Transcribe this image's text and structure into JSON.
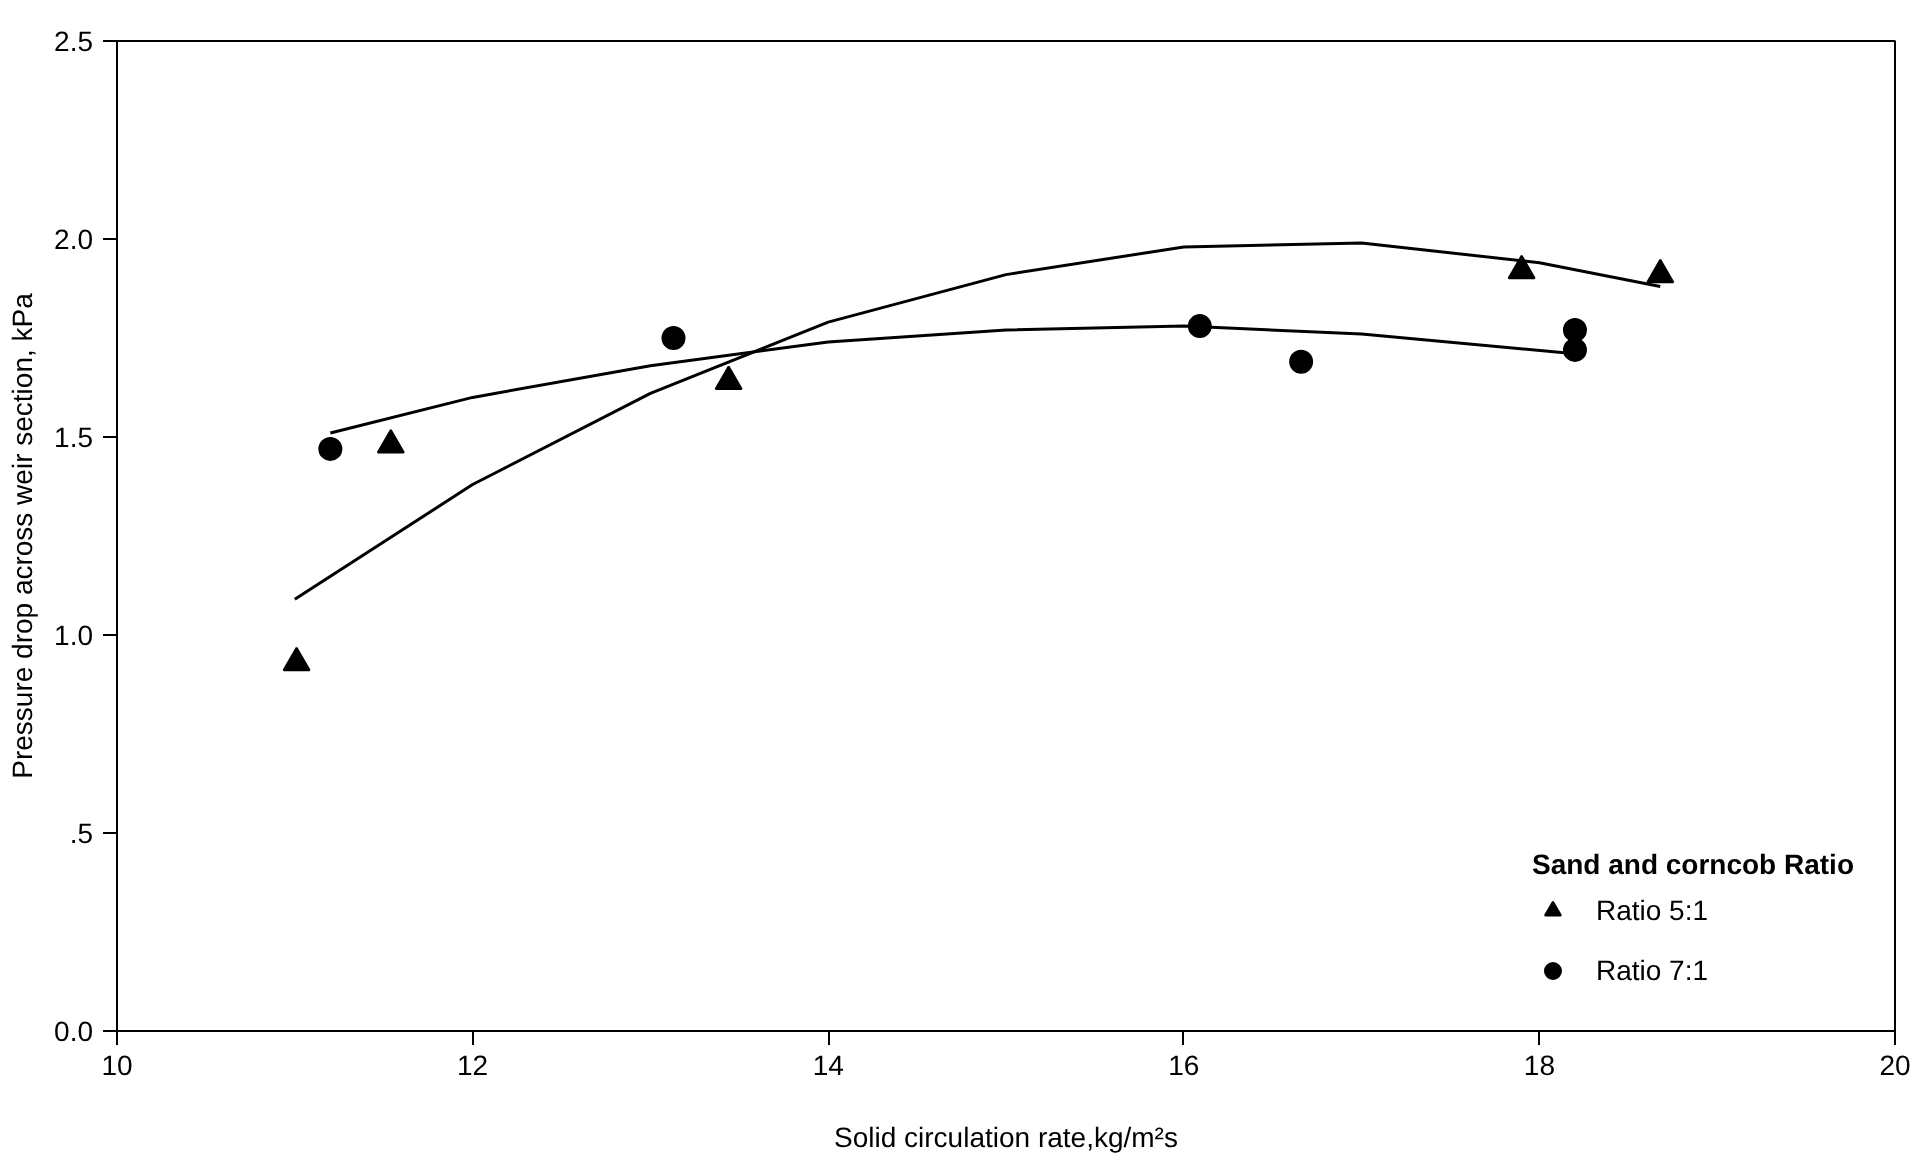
{
  "chart_data": {
    "type": "scatter",
    "xlabel": "Solid circulation rate,kg/m²s",
    "ylabel": "Pressure drop across weir section, kPa",
    "legend_title": "Sand and corncob Ratio",
    "legend": "bottom right",
    "grid": false,
    "xlim": [
      10,
      20
    ],
    "xticks": [
      10,
      12,
      14,
      16,
      18,
      20
    ],
    "ylim": [
      0,
      2.5
    ],
    "yticks": [
      {
        "value": 0,
        "label": "0.0"
      },
      {
        "value": 0.5,
        "label": ".5"
      },
      {
        "value": 1,
        "label": "1.0"
      },
      {
        "value": 1.5,
        "label": "1.5"
      },
      {
        "value": 2,
        "label": "2.0"
      },
      {
        "value": 2.5,
        "label": "2.5"
      }
    ],
    "series": [
      {
        "name": "Ratio 5:1",
        "color": "#000000",
        "marker": "triangle",
        "x": [
          11.01,
          11.54,
          13.44,
          17.9,
          18.68
        ],
        "values": [
          0.93,
          1.48,
          1.64,
          1.92,
          1.91
        ]
      },
      {
        "name": "Ratio 7:1",
        "color": "#000000",
        "marker": "circle",
        "x": [
          11.2,
          13.13,
          16.09,
          16.66,
          18.2,
          18.2
        ],
        "values": [
          1.47,
          1.75,
          1.78,
          1.69,
          1.77,
          1.72
        ]
      },
      {
        "type": "line",
        "color": "#000000",
        "marker": "none",
        "line_style": "solid",
        "x": [
          11,
          12,
          13,
          14,
          15,
          16,
          17,
          18,
          18.68
        ],
        "values": [
          1.09,
          1.38,
          1.61,
          1.79,
          1.91,
          1.98,
          1.99,
          1.94,
          1.88
        ]
      },
      {
        "type": "line",
        "color": "#000000",
        "marker": "none",
        "line_style": "solid",
        "x": [
          11.2,
          12,
          13,
          14,
          15,
          16,
          17,
          18.2
        ],
        "values": [
          1.51,
          1.6,
          1.68,
          1.74,
          1.77,
          1.78,
          1.76,
          1.71
        ]
      }
    ]
  }
}
